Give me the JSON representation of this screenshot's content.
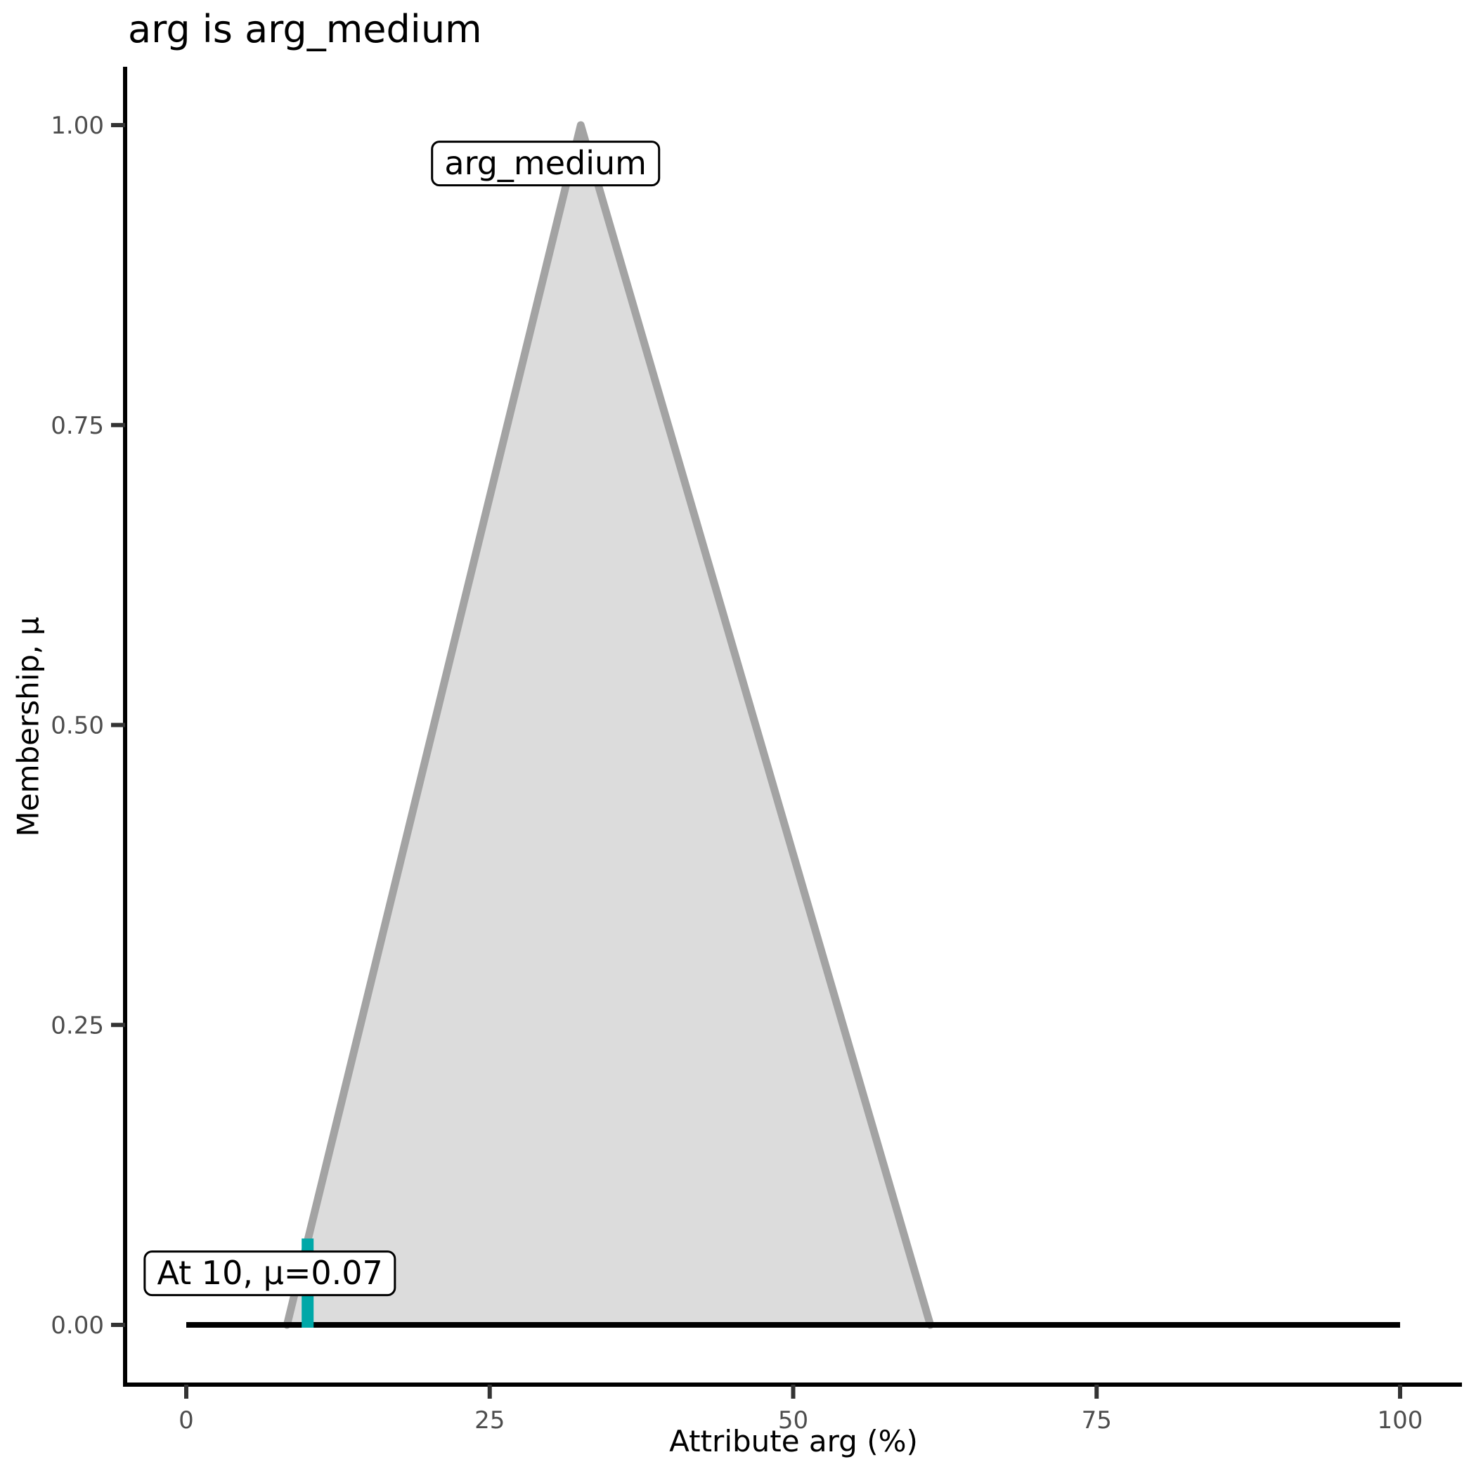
{
  "figure": {
    "title": "arg is arg_medium",
    "background": "#FFFFFF"
  },
  "chart_data": {
    "type": "area",
    "title": "arg is arg_medium",
    "xlabel": "Attribute arg (%)",
    "ylabel": "Membership, μ",
    "xlim": [
      0,
      100
    ],
    "ylim": [
      0,
      1
    ],
    "grid": "off",
    "legend": "none",
    "x_ticks": {
      "values": [
        0,
        25,
        50,
        75,
        100
      ],
      "labels": [
        "0",
        "25",
        "50",
        "75",
        "100"
      ]
    },
    "y_ticks": {
      "values": [
        0,
        0.25,
        0.5,
        0.75,
        1.0
      ],
      "labels": [
        "0.00",
        "0.25",
        "0.50",
        "0.75",
        "1.00"
      ]
    },
    "series": [
      {
        "name": "arg_medium",
        "kind": "fuzzy-membership-function",
        "shape": "triangle",
        "points": [
          [
            8.3,
            0
          ],
          [
            32.5,
            1.0
          ],
          [
            61.3,
            0
          ]
        ],
        "fill": "#DCDCDC",
        "stroke": "#A3A3A3"
      }
    ],
    "baseline": {
      "x": [
        0,
        100
      ],
      "y": 0,
      "color": "#000000"
    },
    "highlight": {
      "x": 10,
      "mu": 0.072,
      "label": "At 10, μ=0.07",
      "color": "#00A8A8",
      "label_center": {
        "x": 6.9,
        "mu": 0.043
      }
    },
    "set_label": {
      "text": "arg_medium",
      "center": {
        "x": 29.6,
        "mu": 0.968
      }
    },
    "colors": {
      "axis_line": "#000000",
      "tick_mark": "#333333",
      "tick_label": "#4D4D4D",
      "text": "#000000"
    }
  }
}
